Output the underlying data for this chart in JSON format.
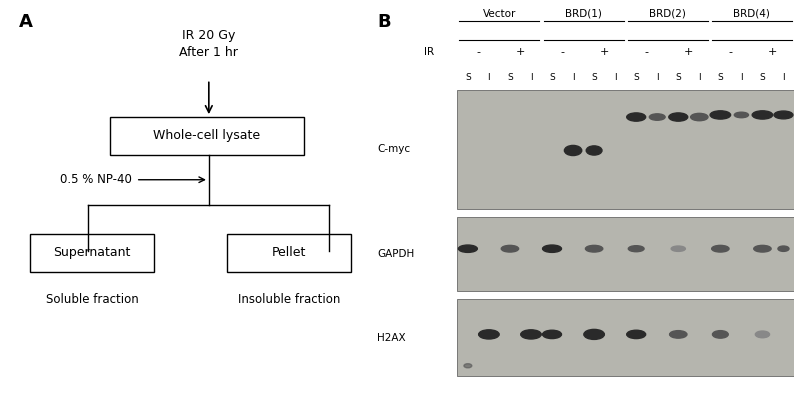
{
  "panel_A": {
    "label": "A",
    "ir_text": "IR 20 Gy\nAfter 1 hr",
    "box_whole_cell": "Whole-cell lysate",
    "np40_text": "0.5 % NP-40",
    "box_left": "Supernatant",
    "box_right": "Pellet",
    "label_left": "Soluble fraction",
    "label_right": "Insoluble fraction"
  },
  "panel_B": {
    "label": "B",
    "group_labels": [
      "Vector",
      "BRD(1)",
      "BRD(2)",
      "BRD(4)"
    ],
    "ir_label": "IR",
    "ir_signs": [
      "-",
      "+",
      "-",
      "+",
      "-",
      "+",
      "-",
      "+"
    ],
    "si_row": [
      "S",
      "I",
      "S",
      "I",
      "S",
      "I",
      "S",
      "I",
      "S",
      "I",
      "S",
      "I",
      "S",
      "I",
      "S",
      "I"
    ],
    "row_labels": [
      "C-myc",
      "GAPDH",
      "H2AX"
    ],
    "blot_bg": "#b5b5ae",
    "band_color_dark": "#2a2a2a",
    "band_color_mid": "#555555",
    "band_color_light": "#888888"
  }
}
